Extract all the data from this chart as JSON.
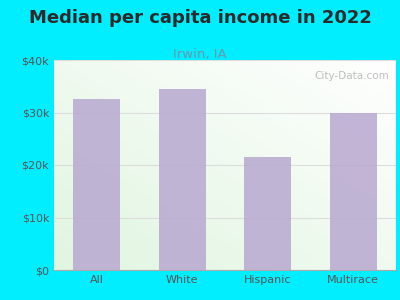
{
  "title": "Median per capita income in 2022",
  "subtitle": "Irwin, IA",
  "categories": [
    "All",
    "White",
    "Hispanic",
    "Multirace"
  ],
  "values": [
    32500,
    34500,
    21500,
    30000
  ],
  "bar_color": "#b8a8d0",
  "ylim": [
    0,
    40000
  ],
  "yticks": [
    0,
    10000,
    20000,
    30000,
    40000
  ],
  "ytick_labels": [
    "$0",
    "$10k",
    "$20k",
    "$30k",
    "$40k"
  ],
  "title_fontsize": 13,
  "subtitle_fontsize": 9.5,
  "title_color": "#2a2a2a",
  "subtitle_color": "#6699aa",
  "tick_color": "#555555",
  "bg_outer": "#00eeff",
  "watermark": "City-Data.com",
  "grid_color": "#dddddd"
}
